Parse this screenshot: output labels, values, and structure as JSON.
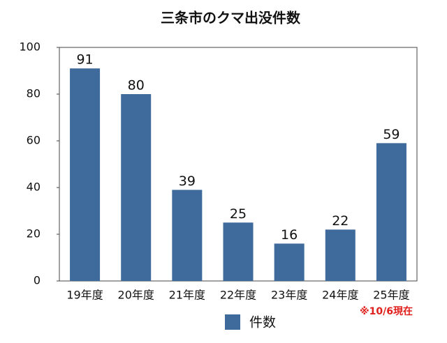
{
  "chart_data": {
    "type": "bar",
    "title": "三条市のクマ出没件数",
    "categories": [
      "19年度",
      "20年度",
      "21年度",
      "22年度",
      "23年度",
      "24年度",
      "25年度"
    ],
    "series": [
      {
        "name": "件数",
        "color": "#3e6a9c",
        "values": [
          91,
          80,
          39,
          25,
          16,
          22,
          59
        ]
      }
    ],
    "ylim": [
      0,
      100
    ],
    "yticks": [
      0,
      20,
      40,
      60,
      80,
      100
    ],
    "grid": false,
    "annotation": "※10/6現在",
    "legend": "bottom"
  }
}
